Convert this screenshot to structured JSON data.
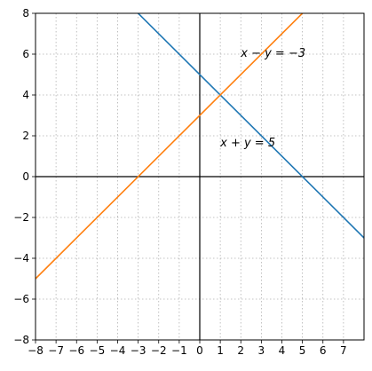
{
  "chart_data": {
    "type": "line",
    "title": "",
    "xlabel": "",
    "ylabel": "",
    "xlim": [
      -8,
      8
    ],
    "ylim": [
      -8,
      8
    ],
    "grid": true,
    "grid_style": "dotted",
    "x_ticks": [
      -8,
      -7,
      -6,
      -5,
      -4,
      -3,
      -2,
      -1,
      0,
      1,
      2,
      3,
      4,
      5,
      6,
      7
    ],
    "y_ticks": [
      -8,
      -6,
      -4,
      -2,
      0,
      2,
      4,
      6,
      8
    ],
    "x_tick_labels": [
      "−8",
      "−7",
      "−6",
      "−5",
      "−4",
      "−3",
      "−2",
      "−1",
      "0",
      "1",
      "2",
      "3",
      "4",
      "5",
      "6",
      "7"
    ],
    "y_tick_labels": [
      "−8",
      "−6",
      "−4",
      "−2",
      "0",
      "2",
      "4",
      "6",
      "8"
    ],
    "series": [
      {
        "color": "#1f77b4",
        "x": [
          -8,
          8
        ],
        "y": [
          13,
          -3
        ]
      },
      {
        "color": "#ff7f0e",
        "x": [
          -8,
          8
        ],
        "y": [
          -5,
          11
        ]
      }
    ],
    "annotations": [
      {
        "text": "x − y = −3",
        "x": 2.0,
        "y": 6.0
      },
      {
        "text": "x + y = 5",
        "x": 1.0,
        "y": 1.6
      }
    ]
  }
}
